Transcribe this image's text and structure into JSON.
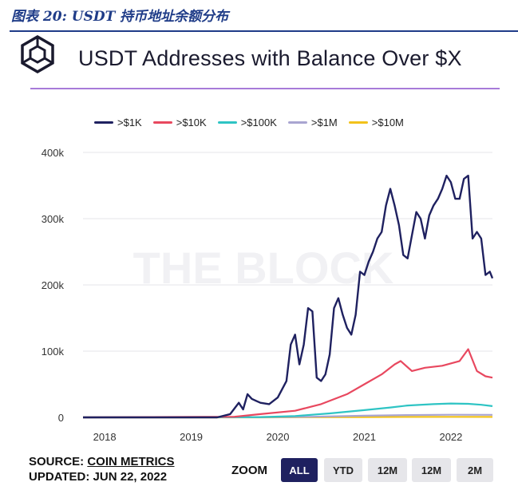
{
  "caption": "图表 20:  USDT 持币地址余额分布",
  "title": "USDT Addresses with Balance Over $X",
  "watermark": "THE BLOCK",
  "source": {
    "prefix": "SOURCE: ",
    "name": "COIN METRICS",
    "updated": "UPDATED: JUN 22, 2022"
  },
  "zoom": {
    "label": "ZOOM",
    "buttons": [
      "ALL",
      "YTD",
      "12M",
      "12M",
      "2M"
    ],
    "active_index": 0
  },
  "colors": {
    "title_rule": "#a77bd9",
    "caption": "#1f3c88",
    "active_button": "#1f2160"
  },
  "chart_data": {
    "type": "line",
    "xlabel": "",
    "ylabel": "",
    "xlim": [
      2017.75,
      2022.48
    ],
    "ylim": [
      0,
      400000
    ],
    "x_ticks": [
      2018,
      2019,
      2020,
      2021,
      2022
    ],
    "x_tick_labels": [
      "2018",
      "2019",
      "2020",
      "2021",
      "2022"
    ],
    "y_ticks": [
      0,
      100000,
      200000,
      300000,
      400000
    ],
    "y_tick_labels": [
      "0",
      "100k",
      "200k",
      "300k",
      "400k"
    ],
    "grid": "horizontal",
    "legend_position": "top",
    "series": [
      {
        "name": ">$1K",
        "color": "#1f2160",
        "x": [
          2017.75,
          2019.3,
          2019.45,
          2019.55,
          2019.6,
          2019.65,
          2019.7,
          2019.75,
          2019.8,
          2019.9,
          2020.0,
          2020.1,
          2020.15,
          2020.2,
          2020.25,
          2020.3,
          2020.35,
          2020.4,
          2020.45,
          2020.5,
          2020.55,
          2020.6,
          2020.65,
          2020.7,
          2020.75,
          2020.8,
          2020.85,
          2020.9,
          2020.95,
          2021.0,
          2021.05,
          2021.1,
          2021.15,
          2021.2,
          2021.25,
          2021.3,
          2021.35,
          2021.4,
          2021.45,
          2021.5,
          2021.55,
          2021.6,
          2021.65,
          2021.7,
          2021.75,
          2021.8,
          2021.85,
          2021.9,
          2021.95,
          2022.0,
          2022.05,
          2022.1,
          2022.15,
          2022.2,
          2022.25,
          2022.3,
          2022.35,
          2022.4,
          2022.45,
          2022.48
        ],
        "y": [
          0,
          0,
          5000,
          22000,
          12000,
          35000,
          28000,
          25000,
          22000,
          20000,
          30000,
          55000,
          110000,
          125000,
          80000,
          110000,
          165000,
          160000,
          60000,
          55000,
          65000,
          95000,
          165000,
          180000,
          155000,
          135000,
          125000,
          155000,
          220000,
          215000,
          235000,
          250000,
          270000,
          280000,
          320000,
          345000,
          320000,
          290000,
          245000,
          240000,
          275000,
          310000,
          300000,
          270000,
          305000,
          320000,
          330000,
          345000,
          365000,
          355000,
          330000,
          330000,
          360000,
          365000,
          270000,
          280000,
          270000,
          215000,
          220000,
          210000
        ]
      },
      {
        "name": ">$10K",
        "color": "#e8485f",
        "x": [
          2017.75,
          2019.5,
          2019.8,
          2020.2,
          2020.5,
          2020.8,
          2021.0,
          2021.2,
          2021.35,
          2021.42,
          2021.55,
          2021.7,
          2021.9,
          2022.1,
          2022.2,
          2022.3,
          2022.4,
          2022.48
        ],
        "y": [
          0,
          1000,
          5000,
          10000,
          20000,
          35000,
          50000,
          65000,
          80000,
          85000,
          70000,
          75000,
          78000,
          85000,
          103000,
          70000,
          62000,
          60000
        ]
      },
      {
        "name": ">$100K",
        "color": "#2ec4c4",
        "x": [
          2017.75,
          2019.8,
          2020.2,
          2020.6,
          2021.0,
          2021.3,
          2021.5,
          2021.8,
          2022.0,
          2022.2,
          2022.35,
          2022.48
        ],
        "y": [
          0,
          500,
          2000,
          6000,
          11000,
          15000,
          18000,
          20000,
          21000,
          20500,
          19000,
          17000
        ]
      },
      {
        "name": ">$1M",
        "color": "#a9a5d1",
        "x": [
          2017.75,
          2019.8,
          2020.4,
          2021.0,
          2021.5,
          2022.0,
          2022.48
        ],
        "y": [
          0,
          200,
          1000,
          2500,
          3500,
          4000,
          3800
        ]
      },
      {
        "name": ">$10M",
        "color": "#f2c21b",
        "x": [
          2017.75,
          2019.8,
          2020.4,
          2021.0,
          2021.5,
          2022.0,
          2022.48
        ],
        "y": [
          0,
          50,
          200,
          500,
          700,
          800,
          750
        ]
      }
    ]
  }
}
